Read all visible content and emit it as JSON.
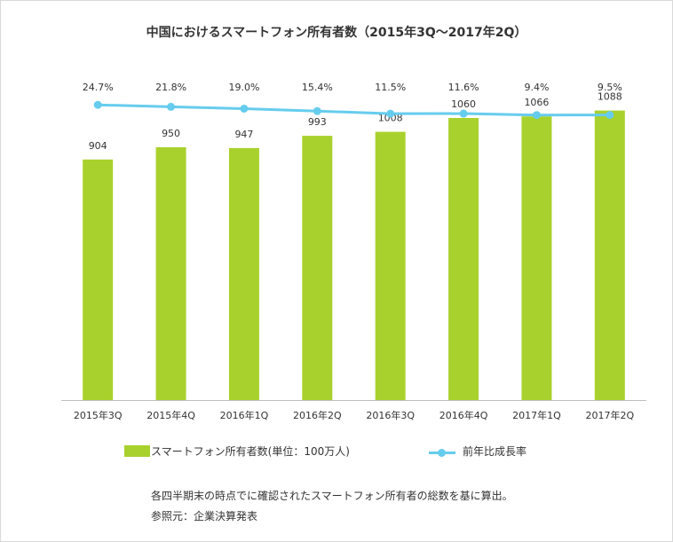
{
  "chart_data": {
    "type": "bar",
    "title": "中国におけるスマートフォン所有者数（2015年3Q～2017年2Q）",
    "categories": [
      "2015年3Q",
      "2015年4Q",
      "2016年1Q",
      "2016年2Q",
      "2016年3Q",
      "2016年4Q",
      "2017年1Q",
      "2017年2Q"
    ],
    "series": [
      {
        "name": "スマートフォン所有者数(単位：100万人)",
        "type": "bar",
        "color": "#a9d12d",
        "values": [
          904,
          950,
          947,
          993,
          1008,
          1060,
          1066,
          1088
        ],
        "labels": [
          "904",
          "950",
          "947",
          "993",
          "1008",
          "1060",
          "1066",
          "1088"
        ]
      },
      {
        "name": "前年比成長率",
        "type": "line",
        "color": "#66ccee",
        "values": [
          24.7,
          21.8,
          19.0,
          15.4,
          11.5,
          11.6,
          9.4,
          9.5
        ],
        "labels": [
          "24.7%",
          "21.8%",
          "19.0%",
          "15.4%",
          "11.5%",
          "11.6%",
          "9.4%",
          "9.5%"
        ]
      }
    ],
    "xlabel": "",
    "ylabel": "",
    "ylim": [
      0,
      1200
    ],
    "grid": false,
    "legend_position": "bottom"
  },
  "notes": {
    "line1": "各四半期末の時点でに確認されたスマートフォン所有者の総数を基に算出。",
    "line2": "参照元：企業決算発表"
  }
}
